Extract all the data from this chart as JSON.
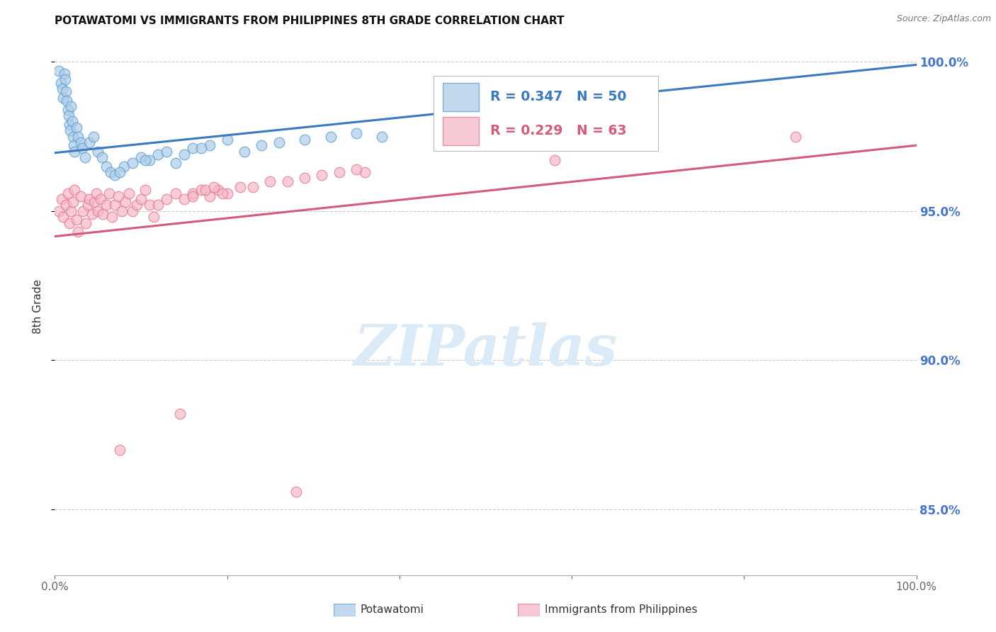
{
  "title": "POTAWATOMI VS IMMIGRANTS FROM PHILIPPINES 8TH GRADE CORRELATION CHART",
  "source": "Source: ZipAtlas.com",
  "ylabel": "8th Grade",
  "xlim": [
    0,
    1.0
  ],
  "ylim": [
    0.828,
    1.008
  ],
  "yticks": [
    0.85,
    0.9,
    0.95,
    1.0
  ],
  "ytick_labels": [
    "85.0%",
    "90.0%",
    "95.0%",
    "100.0%"
  ],
  "xticks": [
    0.0,
    0.2,
    0.4,
    0.6,
    0.8,
    1.0
  ],
  "xtick_labels": [
    "0.0%",
    "",
    "",
    "",
    "",
    "100.0%"
  ],
  "blue_R": 0.347,
  "blue_N": 50,
  "pink_R": 0.229,
  "pink_N": 63,
  "blue_color": "#aecde8",
  "pink_color": "#f4b8c8",
  "blue_edge_color": "#5a9fd4",
  "pink_edge_color": "#e8758f",
  "blue_line_color": "#3a7bbf",
  "pink_line_color": "#d45c7a",
  "watermark_text": "ZIPatlas",
  "watermark_color": "#daeaf7",
  "legend_label_blue": "Potawatomi",
  "legend_label_pink": "Immigrants from Philippines",
  "blue_scatter_x": [
    0.005,
    0.007,
    0.009,
    0.01,
    0.011,
    0.012,
    0.013,
    0.014,
    0.015,
    0.016,
    0.017,
    0.018,
    0.019,
    0.02,
    0.021,
    0.022,
    0.023,
    0.025,
    0.027,
    0.03,
    0.032,
    0.035,
    0.04,
    0.045,
    0.05,
    0.055,
    0.06,
    0.065,
    0.07,
    0.08,
    0.09,
    0.1,
    0.11,
    0.12,
    0.13,
    0.14,
    0.16,
    0.18,
    0.2,
    0.22,
    0.24,
    0.26,
    0.29,
    0.32,
    0.35,
    0.38,
    0.15,
    0.17,
    0.105,
    0.075
  ],
  "blue_scatter_y": [
    0.997,
    0.993,
    0.991,
    0.988,
    0.996,
    0.994,
    0.99,
    0.987,
    0.984,
    0.982,
    0.979,
    0.977,
    0.985,
    0.98,
    0.975,
    0.972,
    0.97,
    0.978,
    0.975,
    0.973,
    0.971,
    0.968,
    0.973,
    0.975,
    0.97,
    0.968,
    0.965,
    0.963,
    0.962,
    0.965,
    0.966,
    0.968,
    0.967,
    0.969,
    0.97,
    0.966,
    0.971,
    0.972,
    0.974,
    0.97,
    0.972,
    0.973,
    0.974,
    0.975,
    0.976,
    0.975,
    0.969,
    0.971,
    0.967,
    0.963
  ],
  "pink_scatter_x": [
    0.005,
    0.008,
    0.01,
    0.013,
    0.015,
    0.017,
    0.019,
    0.021,
    0.023,
    0.025,
    0.027,
    0.03,
    0.033,
    0.036,
    0.038,
    0.04,
    0.043,
    0.046,
    0.048,
    0.05,
    0.053,
    0.056,
    0.06,
    0.063,
    0.066,
    0.07,
    0.074,
    0.078,
    0.082,
    0.086,
    0.09,
    0.095,
    0.1,
    0.105,
    0.11,
    0.115,
    0.12,
    0.13,
    0.14,
    0.15,
    0.16,
    0.17,
    0.18,
    0.19,
    0.2,
    0.215,
    0.23,
    0.25,
    0.27,
    0.29,
    0.31,
    0.33,
    0.36,
    0.16,
    0.175,
    0.185,
    0.195,
    0.35,
    0.58,
    0.86,
    0.145,
    0.075,
    0.28
  ],
  "pink_scatter_y": [
    0.95,
    0.954,
    0.948,
    0.952,
    0.956,
    0.946,
    0.95,
    0.953,
    0.957,
    0.947,
    0.943,
    0.955,
    0.95,
    0.946,
    0.952,
    0.954,
    0.949,
    0.953,
    0.956,
    0.95,
    0.954,
    0.949,
    0.952,
    0.956,
    0.948,
    0.952,
    0.955,
    0.95,
    0.953,
    0.956,
    0.95,
    0.952,
    0.954,
    0.957,
    0.952,
    0.948,
    0.952,
    0.954,
    0.956,
    0.954,
    0.956,
    0.957,
    0.955,
    0.957,
    0.956,
    0.958,
    0.958,
    0.96,
    0.96,
    0.961,
    0.962,
    0.963,
    0.963,
    0.955,
    0.957,
    0.958,
    0.956,
    0.964,
    0.967,
    0.975,
    0.882,
    0.87,
    0.856
  ],
  "blue_trendline_x": [
    0.0,
    1.0
  ],
  "blue_trendline_y": [
    0.9695,
    0.999
  ],
  "pink_trendline_x": [
    0.0,
    1.0
  ],
  "pink_trendline_y": [
    0.9415,
    0.972
  ],
  "title_fontsize": 11,
  "tick_color": "#666666",
  "right_tick_color": "#4477cc",
  "background_color": "#ffffff",
  "grid_color": "#cccccc"
}
